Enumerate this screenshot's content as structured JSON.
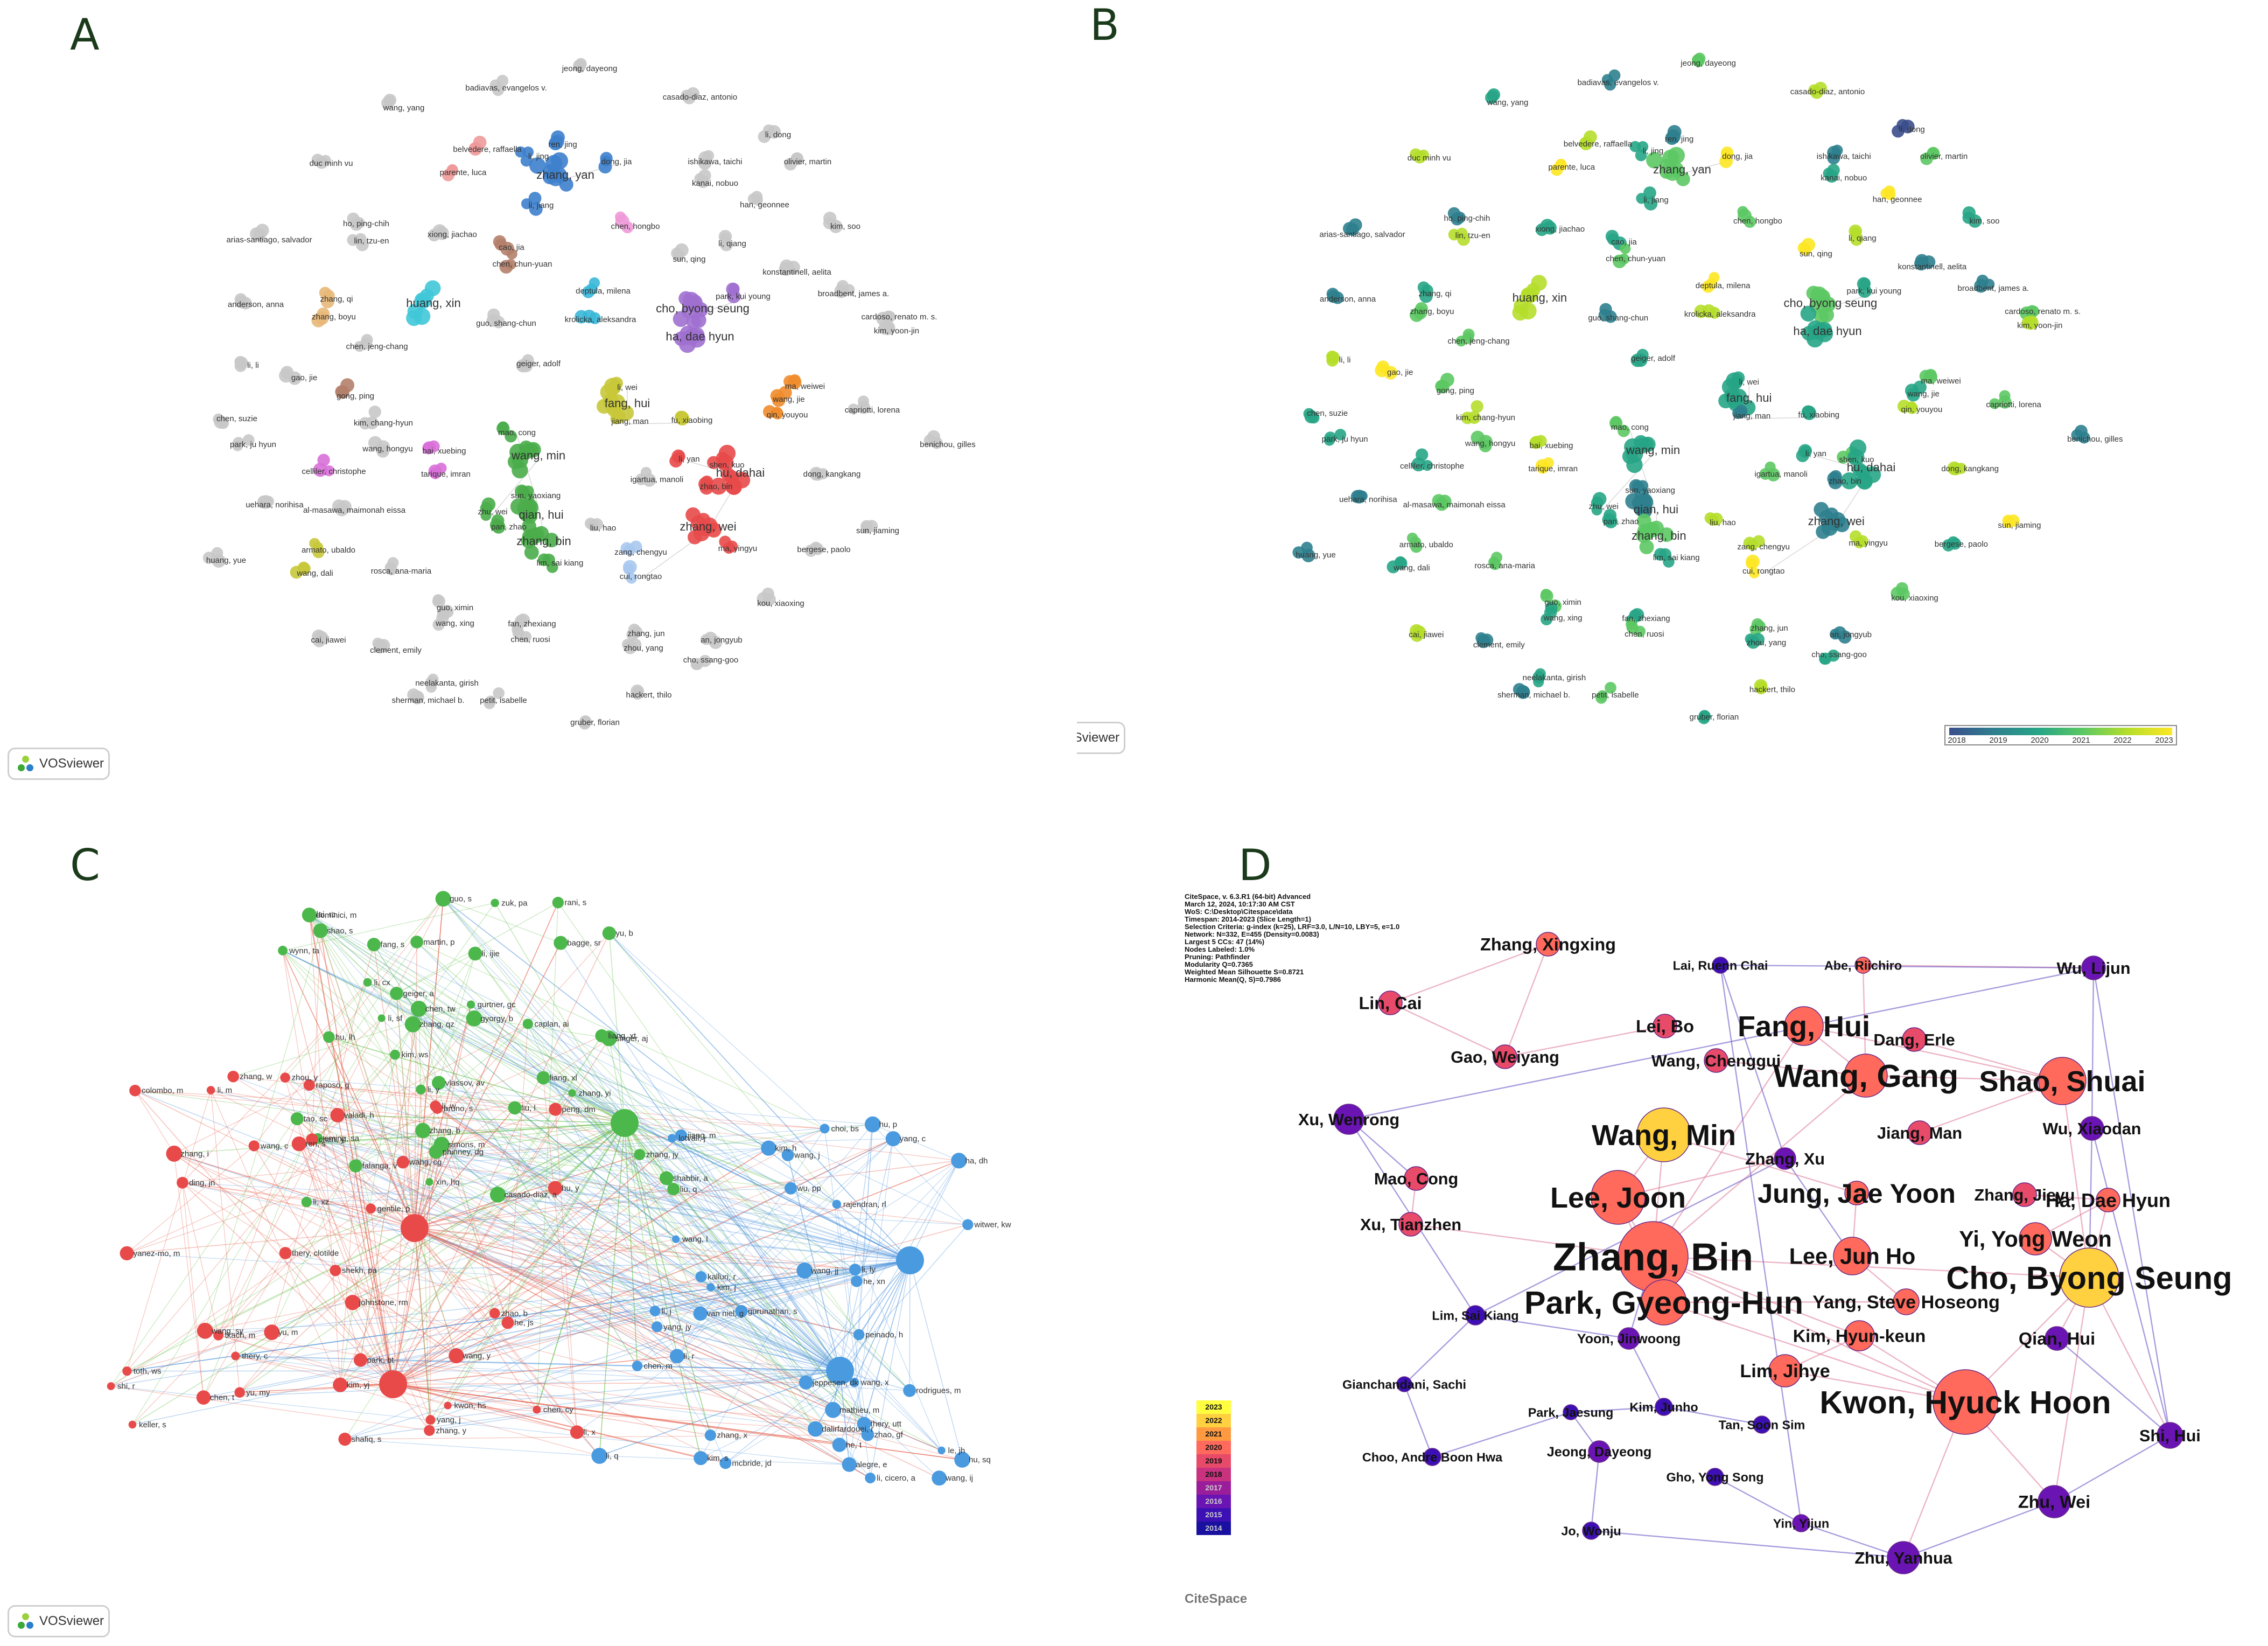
{
  "panel_labels": {
    "a": "A",
    "b": "B",
    "c": "C",
    "d": "D"
  },
  "vosviewer_logo": "VOSviewer",
  "panel_a": {
    "labels": [
      "jeong, dayeong",
      "badiavas, evangelos v.",
      "casado-diaz, antonio",
      "wang, yang",
      "li, dong",
      "belvedere, raffaella",
      "parente, luca",
      "ren, jing",
      "li, jing",
      "zhang, yan",
      "dong, jia",
      "li, jiang",
      "ishikawa, taichi",
      "kanai, nobuo",
      "olivier, martin",
      "duc minh vu",
      "han, geonnee",
      "chen, hongbo",
      "kim, soo",
      "ho, ping-chih",
      "lin, tzu-en",
      "xiong, jiachao",
      "arias-santiago, salvador",
      "cao, jia",
      "chen, chun-yuan",
      "li, qiang",
      "sun, qing",
      "konstantinell, aelita",
      "zhang, qi",
      "zhang, boyu",
      "anderson, anna",
      "huang, xin",
      "deptula, milena",
      "krolicka, aleksandra",
      "cho, byong seung",
      "park, kui young",
      "ha, dae hyun",
      "broadbent, james a.",
      "guo, shang-chun",
      "cardoso, renato m. s.",
      "kim, yoon-jin",
      "chen, jeng-chang",
      "geiger, adolf",
      "li, li",
      "gao, jie",
      "ma, weiwei",
      "wang, jie",
      "qin, youyou",
      "gong, ping",
      "chen, suzie",
      "fang, hui",
      "jiang, man",
      "fu, xiaobing",
      "capriotti, lorena",
      "kim, chang-hyun",
      "li, wei",
      "park, ju hyun",
      "mao, cong",
      "wang, min",
      "bai, xuebing",
      "wang, hongyu",
      "celliler, christophe",
      "tarique, imran",
      "benichou, gilles",
      "li, yan",
      "shen, kuo",
      "hu, dahai",
      "zhao, bin",
      "dong, kangkang",
      "igartua, manoli",
      "sun, yaoxiang",
      "zhu, wei",
      "qian, hui",
      "pan, zhao",
      "zhang, bin",
      "lim, sai kiang",
      "uehara, norihisa",
      "al-masawa, maimonah eissa",
      "liu, hao",
      "zhang, wei",
      "sun, jiaming",
      "armato, ubaldo",
      "wang, dali",
      "ma, yingyu",
      "huang, yue",
      "bergese, paolo",
      "rosca, ana-maria",
      "zang, chengyu",
      "cui, rongtao",
      "kou, xiaoxing",
      "guo, ximin",
      "wang, xing",
      "fan, zhexiang",
      "chen, ruosi",
      "cai, jiawei",
      "clement, emily",
      "zhang, jun",
      "zhou, yang",
      "an, jongyub",
      "cho, ssang-goo",
      "neelakanta, girish",
      "sherman, michael b.",
      "petit, isabelle",
      "hackert, thilo",
      "gruber, florian"
    ]
  },
  "panel_b": {
    "labels": [
      "jeong, dayeong",
      "badiavas, evangelos v.",
      "casado-diaz, antonio",
      "wang, yang",
      "li, dong",
      "belvedere, raffaella",
      "parente, luca",
      "ren, jing",
      "li, jing",
      "zhang, yan",
      "dong, jia",
      "li, jiang",
      "ishikawa, taichi",
      "kanai, nobuo",
      "olivier, martin",
      "duc minh vu",
      "han, geonnee",
      "chen, hongbo",
      "kim, soo",
      "ho, ping-chih",
      "lin, tzu-en",
      "xiong, jiachao",
      "arias-santiago, salvador",
      "cao, jia",
      "chen, chun-yuan",
      "li, qiang",
      "sun, qing",
      "konstantinell, aelita",
      "zhang, qi",
      "zhang, boyu",
      "anderson, anna",
      "huang, xin",
      "deptula, milena",
      "krolicka, aleksandra",
      "cho, byong seung",
      "park, kui young",
      "ha, dae hyun",
      "broadbent, james a.",
      "guo, shang-chun",
      "cardoso, renato m. s.",
      "kim, yoon-jin",
      "chen, jeng-chang",
      "geiger, adolf",
      "li, li",
      "gao, jie",
      "ma, weiwei",
      "wang, jie",
      "qin, youyou",
      "gong, ping",
      "chen, suzie",
      "fang, hui",
      "jiang, man",
      "fu, xiaobing",
      "capriotti, lorena",
      "kim, chang-hyun",
      "li, wei",
      "park, ju hyun",
      "mao, cong",
      "wang, min",
      "bai, xuebing",
      "wang, hongyu",
      "celliler, christophe",
      "tarique, imran",
      "benichou, gilles",
      "li, yan",
      "shen, kuo",
      "hu, dahai",
      "zhao, bin",
      "dong, kangkang",
      "igartua, manoli",
      "sun, yaoxiang",
      "zhu, wei",
      "qian, hui",
      "pan, zhao",
      "zhang, bin",
      "lim, sai kiang",
      "uehara, norihisa",
      "al-masawa, maimonah eissa",
      "liu, hao",
      "zhang, wei",
      "sun, jiaming",
      "armato, ubaldo",
      "wang, dali",
      "ma, yingyu",
      "huang, yue",
      "bergese, paolo",
      "rosca, ana-maria",
      "zang, chengyu",
      "cui, rongtao",
      "kou, xiaoxing",
      "guo, ximin",
      "wang, xing",
      "fan, zhexiang",
      "chen, ruosi",
      "cai, jiawei",
      "clement, emily",
      "zhang, jun",
      "zhou, yang",
      "an, jongyub",
      "cho, ssang-goo",
      "neelakanta, girish",
      "sherman, michael b.",
      "petit, isabelle",
      "hackert, thilo",
      "gruber, florian"
    ],
    "colorbar_ticks": [
      "2018",
      "2019",
      "2020",
      "2021",
      "2022",
      "2023"
    ],
    "colorbar_colors": [
      "#3b4e8c",
      "#2f7f8e",
      "#27a586",
      "#5cc863",
      "#b5de2b",
      "#fde725"
    ]
  },
  "panel_c": {
    "labels": [
      "li, y",
      "falanga, v",
      "singer, aj",
      "rani, s",
      "martin, p",
      "yu, b",
      "liang, xt",
      "xin, hq",
      "gurtner, gc",
      "wynn, ta",
      "caplan, ai",
      "hu, lh",
      "liang, xl",
      "guo, s",
      "eming, sa",
      "li, xz",
      "lai, rc",
      "zhang, yi",
      "liu, l",
      "shabbir, a",
      "chen, tw",
      "zuk, pa",
      "phinney, dg",
      "geiger, a",
      "li, sf",
      "bagge, sr",
      "zhang, jy",
      "dominici, m",
      "li, cx",
      "li, ijie",
      "zhang, qz",
      "kim, ws",
      "simons, m",
      "zhang, b",
      "fang, s",
      "liu, q",
      "gyorgy, b",
      "vlassov, av",
      "casado-diaz, a",
      "tao, sc",
      "shao, s",
      "chen, y",
      "zhou, y",
      "bruno, s",
      "li, x",
      "zhao, b",
      "kim, yj",
      "johnstone, rm",
      "yang, j",
      "he, js",
      "thery, clotilde",
      "wang, c",
      "keller, s",
      "chen, cy",
      "toth, ws",
      "shafiq, s",
      "ren, s",
      "li, m",
      "valadi, h",
      "tkach, m",
      "ding, jn",
      "yu, m",
      "wang, y",
      "chen, t",
      "raposo, g",
      "wang, sy",
      "li, w",
      "yanez-mo, m",
      "shi, r",
      "hu, y",
      "gentile, p",
      "shekh, pa",
      "yu, my",
      "zhang, w",
      "peng, dm",
      "colombo, m",
      "park, bt",
      "kwon, hs",
      "wang, cg",
      "zhang, y",
      "zhang, i",
      "thery, c",
      "li, q",
      "wang, jj",
      "mcbride, jd",
      "wang, ij",
      "zhang, x",
      "lotvall, j",
      "he, xn",
      "thery, utt",
      "yang, jy",
      "wang, x",
      "chen, m",
      "jeppesen, dk",
      "jiang, m",
      "rodrigues, m",
      "zhao, gf",
      "he, t",
      "wang, l",
      "witwer, kw",
      "kalluri, r",
      "dalirfardouei, r",
      "li, ly",
      "kim, h",
      "van niel, g",
      "li, j",
      "wu, pp",
      "mathieu, m",
      "li, cicero, a",
      "yang, c",
      "hu, sq",
      "hu, p",
      "choi, bs",
      "rajendran, rl",
      "wang, j",
      "kim, j",
      "ha, dh",
      "gurunathan, s",
      "li, r",
      "kim, s",
      "peinado, h",
      "alegre, e",
      "le, jh"
    ]
  },
  "panel_d": {
    "citespace_info": [
      "CiteSpace, v. 6.3.R1 (64-bit) Advanced",
      "March 12, 2024, 10:17:30 AM CST",
      "WoS: C:\\Desktop\\Citespace\\data",
      "Timespan: 2014-2023 (Slice Length=1)",
      "Selection Criteria: g-index (k=25), LRF=3.0, L/N=10, LBY=5, e=1.0",
      "Network: N=332, E=455 (Density=0.0083)",
      "Largest 5 CCs: 47 (14%)",
      "Nodes Labeled: 1.0%",
      "Pruning: Pathfinder",
      "Modularity Q=0.7365",
      "Weighted Mean Silhouette S=0.8721",
      "Harmonic Mean(Q, S)=0.7986"
    ],
    "nodes": [
      {
        "label": "Zhang, Xingxing",
        "year": 2020
      },
      {
        "label": "Lai, Ruenn Chai",
        "year": 2015
      },
      {
        "label": "Abe, Riichiro",
        "year": 2020
      },
      {
        "label": "Wu, Lijun",
        "year": 2016
      },
      {
        "label": "Lin, Cai",
        "year": 2019
      },
      {
        "label": "Lei, Bo",
        "year": 2019
      },
      {
        "label": "Fang, Hui",
        "year": 2020
      },
      {
        "label": "Dang, Erle",
        "year": 2019
      },
      {
        "label": "Gao, Weiyang",
        "year": 2019
      },
      {
        "label": "Wang, Chenggui",
        "year": 2019
      },
      {
        "label": "Wang, Gang",
        "year": 2020
      },
      {
        "label": "Shao, Shuai",
        "year": 2020
      },
      {
        "label": "Xu, Wenrong",
        "year": 2016
      },
      {
        "label": "Wang, Min",
        "year": 2022
      },
      {
        "label": "Jiang, Man",
        "year": 2019
      },
      {
        "label": "Wu, Xiaodan",
        "year": 2016
      },
      {
        "label": "Zhang, Xu",
        "year": 2016
      },
      {
        "label": "Mao, Cong",
        "year": 2019
      },
      {
        "label": "Lee, Joon",
        "year": 2020
      },
      {
        "label": "Jung, Jae Yoon",
        "year": 2020
      },
      {
        "label": "Zhang, Jieyu",
        "year": 2019
      },
      {
        "label": "Ha, Dae Hyun",
        "year": 2020
      },
      {
        "label": "Xu, Tianzhen",
        "year": 2019
      },
      {
        "label": "Zhang, Bin",
        "year": 2020
      },
      {
        "label": "Lee, Jun Ho",
        "year": 2020
      },
      {
        "label": "Yi, Yong Weon",
        "year": 2020
      },
      {
        "label": "Cho, Byong Seung",
        "year": 2022
      },
      {
        "label": "Park, Gyeong-Hun",
        "year": 2020
      },
      {
        "label": "Yang, Steve Hoseong",
        "year": 2020
      },
      {
        "label": "Lim, Sai Kiang",
        "year": 2015
      },
      {
        "label": "Yoon, Jinwoong",
        "year": 2016
      },
      {
        "label": "Kim, Hyun-keun",
        "year": 2020
      },
      {
        "label": "Qian, Hui",
        "year": 2016
      },
      {
        "label": "Lim, Jihye",
        "year": 2020
      },
      {
        "label": "Gianchandani, Sachi",
        "year": 2015
      },
      {
        "label": "Kwon, Hyuck Hoon",
        "year": 2020
      },
      {
        "label": "Kim, Junho",
        "year": 2015
      },
      {
        "label": "Park, Jaesung",
        "year": 2015
      },
      {
        "label": "Tan, Soon Sim",
        "year": 2015
      },
      {
        "label": "Shi, Hui",
        "year": 2016
      },
      {
        "label": "Choo, Andre Boon Hwa",
        "year": 2015
      },
      {
        "label": "Jeong, Dayeong",
        "year": 2016
      },
      {
        "label": "Gho, Yong Song",
        "year": 2015
      },
      {
        "label": "Zhu, Wei",
        "year": 2016
      },
      {
        "label": "Yin, Yijun",
        "year": 2016
      },
      {
        "label": "Jo, Wonju",
        "year": 2015
      },
      {
        "label": "Zhu, Yanhua",
        "year": 2016
      }
    ],
    "legend_years": [
      "2023",
      "2022",
      "2021",
      "2020",
      "2019",
      "2018",
      "2017",
      "2016",
      "2015",
      "2014"
    ],
    "legend_colors": [
      "#ffff40",
      "#ffd040",
      "#ff9a40",
      "#ff6a5c",
      "#e84a6a",
      "#c8327e",
      "#9a1e9a",
      "#6a14b4",
      "#3c10b4",
      "#1a10a0"
    ],
    "logo_text": "CiteSpace"
  }
}
